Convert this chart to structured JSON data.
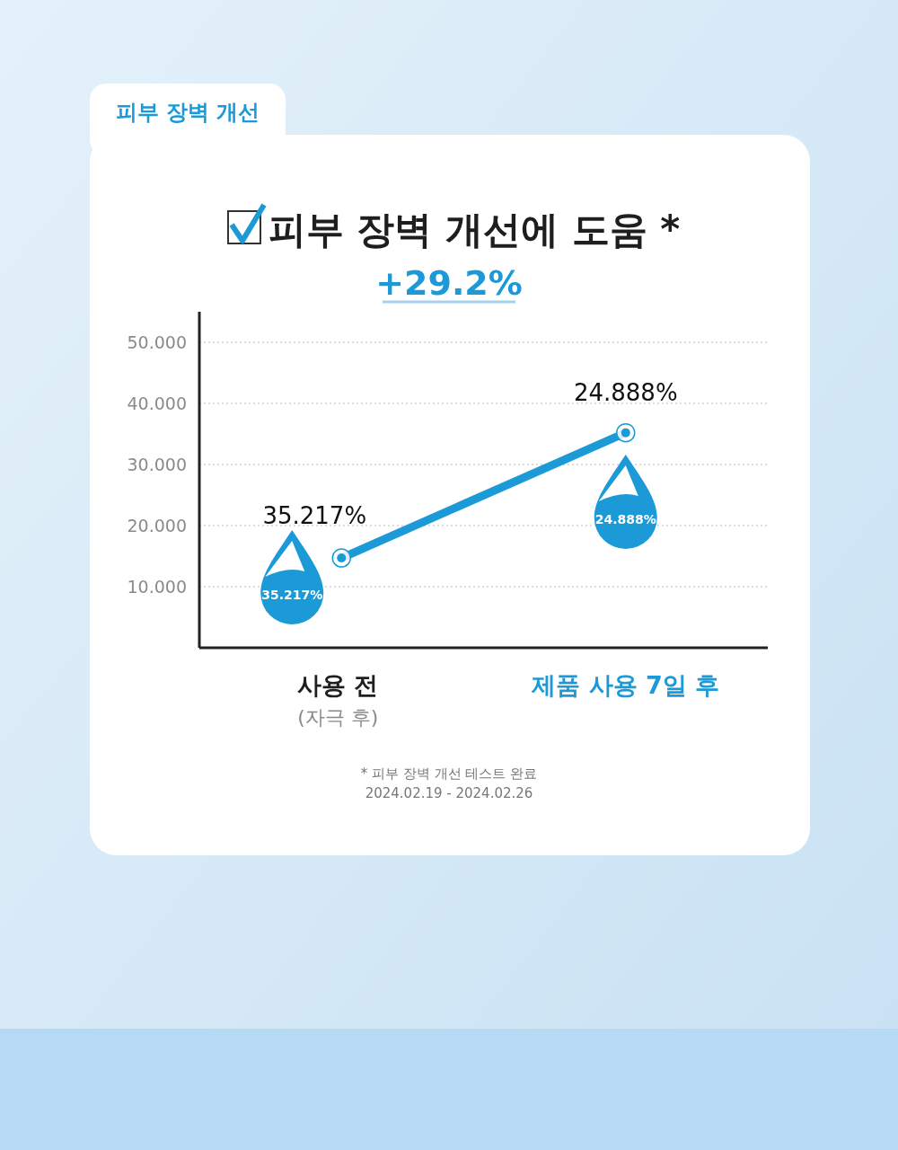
{
  "chart_data": {
    "type": "line",
    "title": "피부 장벽 개선에 도움 *",
    "subtitle": "+29.2%",
    "categories": [
      "사용 전\n(자극 후)",
      "제품 사용 7일 후"
    ],
    "series": [
      {
        "color": "#1c9ad8",
        "values": [
          14.7,
          35.2
        ]
      }
    ],
    "ylim": [
      0,
      55
    ],
    "yticks": [
      {
        "value": 10,
        "label": "10.000"
      },
      {
        "value": 20,
        "label": "20.000"
      },
      {
        "value": 30,
        "label": "30.000"
      },
      {
        "value": 40,
        "label": "40.000"
      },
      {
        "value": 50,
        "label": "50.000"
      }
    ],
    "grid": "y",
    "marker": "circle",
    "line_style": "solid",
    "annotations": [
      "피부 장벽 개선",
      "35.217%",
      "24.888%",
      "35.217%",
      "24.888%",
      "* 피부 장벽 개선 테스트 완료",
      "2024.02.19 - 2024.02.26"
    ]
  }
}
